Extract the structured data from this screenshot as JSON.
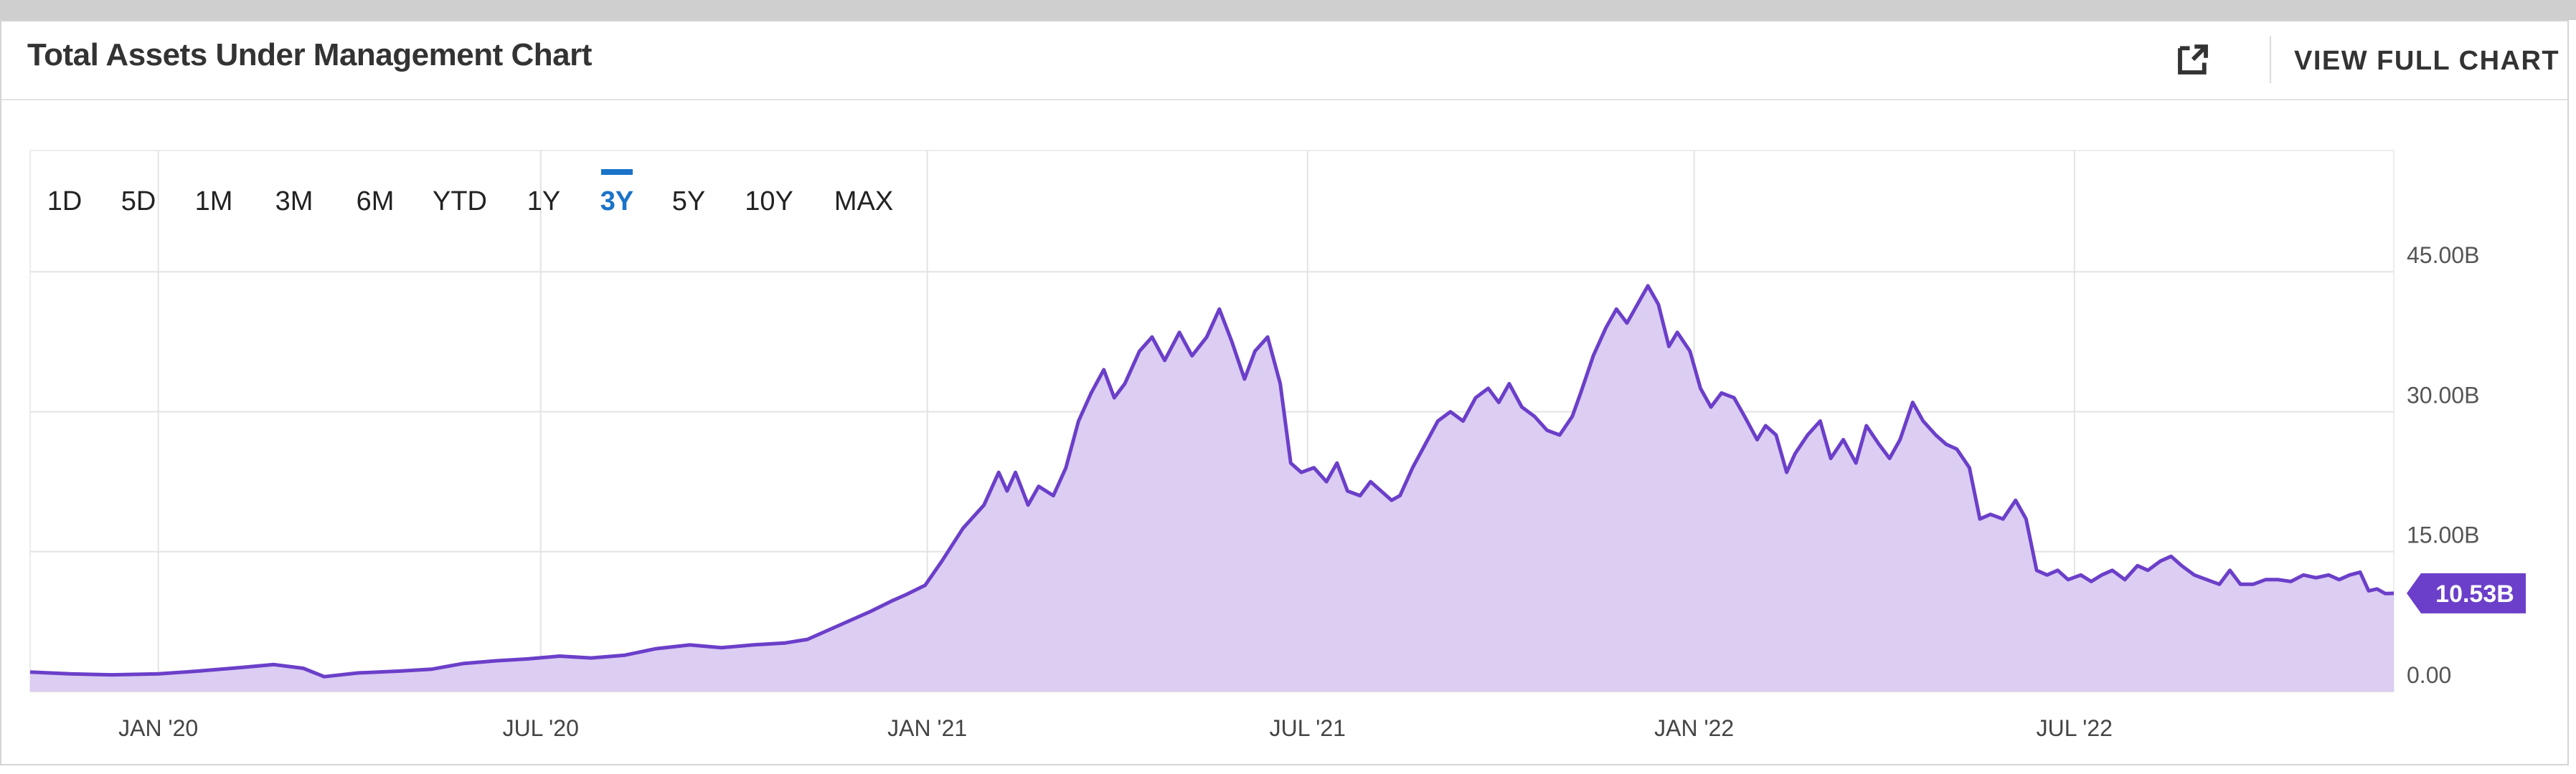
{
  "header": {
    "title": "Total Assets Under Management Chart",
    "view_full_label": "VIEW FULL CHART",
    "external_icon": "external-link-icon"
  },
  "range_selector": {
    "options": [
      "1D",
      "5D",
      "1M",
      "3M",
      "6M",
      "YTD",
      "1Y",
      "3Y",
      "5Y",
      "10Y",
      "MAX"
    ],
    "active": "3Y"
  },
  "colors": {
    "line": "#6b3fc9",
    "fill": "#dccdf3",
    "active_range": "#1a73c9",
    "grid": "#e3e3e3",
    "label_bg": "#6b3fc9"
  },
  "chart_data": {
    "type": "area",
    "title": "",
    "xlabel": "",
    "ylabel": "",
    "unit": "B",
    "x_ticks": [
      "JAN '20",
      "JUL '20",
      "JAN '21",
      "JUL '21",
      "JAN '22",
      "JUL '22"
    ],
    "x_tick_dates": [
      "2020-01-01",
      "2020-07-01",
      "2021-01-01",
      "2021-07-01",
      "2022-01-01",
      "2022-07-01"
    ],
    "y_ticks": [
      "0.00",
      "15.00B",
      "30.00B",
      "45.00B"
    ],
    "y_tick_values": [
      0,
      15,
      30,
      45
    ],
    "ylim": [
      0,
      58
    ],
    "xlim": [
      "2019-11-01",
      "2022-11-30"
    ],
    "grid": true,
    "current_value_label": "10.53B",
    "current_value": 10.53,
    "series": [
      {
        "values": [
          [
            "2019-11-01",
            2.1
          ],
          [
            "2019-11-20",
            1.9
          ],
          [
            "2019-12-10",
            1.8
          ],
          [
            "2020-01-01",
            1.9
          ],
          [
            "2020-01-20",
            2.2
          ],
          [
            "2020-02-10",
            2.6
          ],
          [
            "2020-02-25",
            2.9
          ],
          [
            "2020-03-10",
            2.5
          ],
          [
            "2020-03-20",
            1.6
          ],
          [
            "2020-04-05",
            2.0
          ],
          [
            "2020-04-25",
            2.2
          ],
          [
            "2020-05-10",
            2.4
          ],
          [
            "2020-05-25",
            3.0
          ],
          [
            "2020-06-10",
            3.3
          ],
          [
            "2020-06-25",
            3.5
          ],
          [
            "2020-07-10",
            3.8
          ],
          [
            "2020-07-25",
            3.6
          ],
          [
            "2020-08-10",
            3.9
          ],
          [
            "2020-08-25",
            4.6
          ],
          [
            "2020-09-10",
            5.0
          ],
          [
            "2020-09-25",
            4.7
          ],
          [
            "2020-10-10",
            5.0
          ],
          [
            "2020-10-25",
            5.2
          ],
          [
            "2020-11-05",
            5.6
          ],
          [
            "2020-11-15",
            6.6
          ],
          [
            "2020-11-25",
            7.6
          ],
          [
            "2020-12-05",
            8.6
          ],
          [
            "2020-12-15",
            9.7
          ],
          [
            "2020-12-22",
            10.4
          ],
          [
            "2020-12-31",
            11.4
          ],
          [
            "2021-01-08",
            14.0
          ],
          [
            "2021-01-18",
            17.5
          ],
          [
            "2021-01-28",
            20.0
          ],
          [
            "2021-02-04",
            23.5
          ],
          [
            "2021-02-08",
            21.5
          ],
          [
            "2021-02-12",
            23.5
          ],
          [
            "2021-02-18",
            20.0
          ],
          [
            "2021-02-23",
            22.0
          ],
          [
            "2021-03-02",
            21.0
          ],
          [
            "2021-03-08",
            24.0
          ],
          [
            "2021-03-14",
            29.0
          ],
          [
            "2021-03-20",
            32.0
          ],
          [
            "2021-03-26",
            34.5
          ],
          [
            "2021-03-31",
            31.5
          ],
          [
            "2021-04-05",
            33.0
          ],
          [
            "2021-04-12",
            36.5
          ],
          [
            "2021-04-18",
            38.0
          ],
          [
            "2021-04-24",
            35.5
          ],
          [
            "2021-05-01",
            38.5
          ],
          [
            "2021-05-07",
            36.0
          ],
          [
            "2021-05-14",
            38.0
          ],
          [
            "2021-05-20",
            41.0
          ],
          [
            "2021-05-26",
            37.5
          ],
          [
            "2021-06-01",
            33.5
          ],
          [
            "2021-06-06",
            36.5
          ],
          [
            "2021-06-12",
            38.0
          ],
          [
            "2021-06-18",
            33.0
          ],
          [
            "2021-06-23",
            24.5
          ],
          [
            "2021-06-28",
            23.5
          ],
          [
            "2021-07-04",
            24.0
          ],
          [
            "2021-07-10",
            22.5
          ],
          [
            "2021-07-15",
            24.5
          ],
          [
            "2021-07-20",
            21.5
          ],
          [
            "2021-07-26",
            21.0
          ],
          [
            "2021-07-31",
            22.5
          ],
          [
            "2021-08-05",
            21.5
          ],
          [
            "2021-08-10",
            20.5
          ],
          [
            "2021-08-14",
            21.0
          ],
          [
            "2021-08-20",
            24.0
          ],
          [
            "2021-08-26",
            26.5
          ],
          [
            "2021-09-01",
            29.0
          ],
          [
            "2021-09-07",
            30.0
          ],
          [
            "2021-09-13",
            29.0
          ],
          [
            "2021-09-19",
            31.5
          ],
          [
            "2021-09-25",
            32.5
          ],
          [
            "2021-09-30",
            31.0
          ],
          [
            "2021-10-05",
            33.0
          ],
          [
            "2021-10-11",
            30.5
          ],
          [
            "2021-10-17",
            29.5
          ],
          [
            "2021-10-23",
            28.0
          ],
          [
            "2021-10-29",
            27.5
          ],
          [
            "2021-11-04",
            29.5
          ],
          [
            "2021-11-08",
            32.0
          ],
          [
            "2021-11-14",
            36.0
          ],
          [
            "2021-11-20",
            39.0
          ],
          [
            "2021-11-25",
            41.0
          ],
          [
            "2021-11-30",
            39.5
          ],
          [
            "2021-12-05",
            41.5
          ],
          [
            "2021-12-10",
            43.5
          ],
          [
            "2021-12-15",
            41.5
          ],
          [
            "2021-12-20",
            37.0
          ],
          [
            "2021-12-24",
            38.5
          ],
          [
            "2021-12-30",
            36.5
          ],
          [
            "2022-01-04",
            32.5
          ],
          [
            "2022-01-09",
            30.5
          ],
          [
            "2022-01-14",
            32.0
          ],
          [
            "2022-01-20",
            31.5
          ],
          [
            "2022-01-25",
            29.5
          ],
          [
            "2022-01-31",
            27.0
          ],
          [
            "2022-02-04",
            28.5
          ],
          [
            "2022-02-09",
            27.5
          ],
          [
            "2022-02-14",
            23.5
          ],
          [
            "2022-02-18",
            25.5
          ],
          [
            "2022-02-24",
            27.5
          ],
          [
            "2022-03-02",
            29.0
          ],
          [
            "2022-03-07",
            25.0
          ],
          [
            "2022-03-13",
            27.0
          ],
          [
            "2022-03-19",
            24.5
          ],
          [
            "2022-03-24",
            28.5
          ],
          [
            "2022-03-30",
            26.5
          ],
          [
            "2022-04-04",
            25.0
          ],
          [
            "2022-04-09",
            27.0
          ],
          [
            "2022-04-15",
            31.0
          ],
          [
            "2022-04-20",
            29.0
          ],
          [
            "2022-04-26",
            27.5
          ],
          [
            "2022-05-01",
            26.5
          ],
          [
            "2022-05-06",
            26.0
          ],
          [
            "2022-05-12",
            24.0
          ],
          [
            "2022-05-17",
            18.5
          ],
          [
            "2022-05-22",
            19.0
          ],
          [
            "2022-05-28",
            18.5
          ],
          [
            "2022-06-03",
            20.5
          ],
          [
            "2022-06-08",
            18.5
          ],
          [
            "2022-06-13",
            13.0
          ],
          [
            "2022-06-18",
            12.5
          ],
          [
            "2022-06-23",
            13.0
          ],
          [
            "2022-06-28",
            12.0
          ],
          [
            "2022-07-04",
            12.5
          ],
          [
            "2022-07-09",
            11.8
          ],
          [
            "2022-07-14",
            12.5
          ],
          [
            "2022-07-19",
            13.0
          ],
          [
            "2022-07-25",
            12.0
          ],
          [
            "2022-07-31",
            13.5
          ],
          [
            "2022-08-05",
            13.0
          ],
          [
            "2022-08-11",
            14.0
          ],
          [
            "2022-08-16",
            14.5
          ],
          [
            "2022-08-21",
            13.5
          ],
          [
            "2022-08-27",
            12.5
          ],
          [
            "2022-09-02",
            12.0
          ],
          [
            "2022-09-08",
            11.5
          ],
          [
            "2022-09-13",
            13.0
          ],
          [
            "2022-09-18",
            11.5
          ],
          [
            "2022-09-24",
            11.5
          ],
          [
            "2022-09-30",
            12.0
          ],
          [
            "2022-10-06",
            12.0
          ],
          [
            "2022-10-12",
            11.8
          ],
          [
            "2022-10-18",
            12.5
          ],
          [
            "2022-10-24",
            12.2
          ],
          [
            "2022-10-30",
            12.5
          ],
          [
            "2022-11-04",
            12.0
          ],
          [
            "2022-11-09",
            12.5
          ],
          [
            "2022-11-14",
            12.8
          ],
          [
            "2022-11-18",
            10.8
          ],
          [
            "2022-11-22",
            11.0
          ],
          [
            "2022-11-26",
            10.5
          ],
          [
            "2022-11-30",
            10.53
          ]
        ]
      }
    ]
  }
}
